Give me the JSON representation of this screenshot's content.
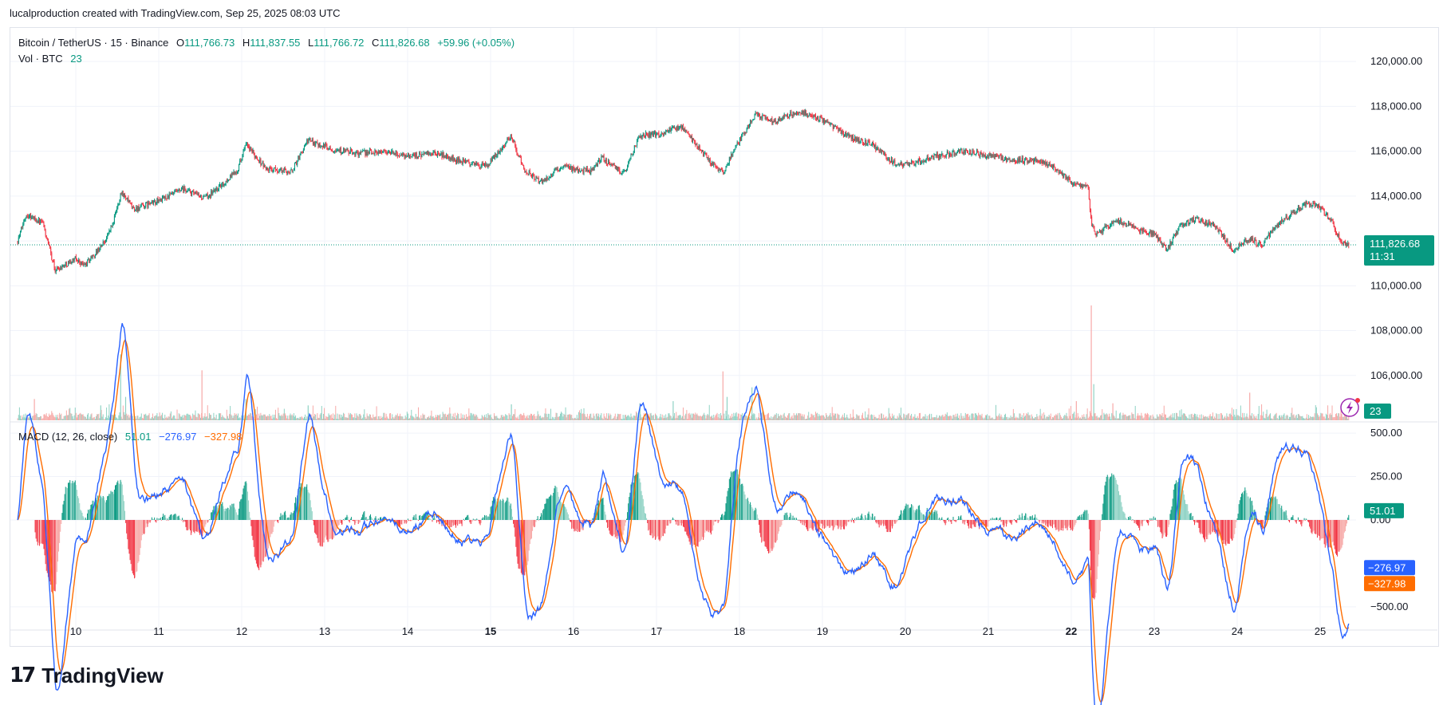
{
  "header": {
    "credit": "lucalproduction created with TradingView.com, Sep 25, 2025 08:03 UTC"
  },
  "legend": {
    "symbol": "Bitcoin / TetherUS · 15 · Binance",
    "o_label": "O",
    "o_value": "111,766.73",
    "h_label": "H",
    "h_value": "111,837.55",
    "l_label": "L",
    "l_value": "111,766.72",
    "c_label": "C",
    "c_value": "111,826.68",
    "change": "+59.96 (+0.05%)",
    "vol_label": "Vol · BTC",
    "vol_value": "23",
    "macd_label": "MACD (12, 26, close)",
    "macd_hist": "51.01",
    "macd_line": "−276.97",
    "macd_signal": "−327.98"
  },
  "price_badge": {
    "price": "111,826.68",
    "countdown": "11:31"
  },
  "vol_badge": "23",
  "macd_badges": {
    "hist": "51.01",
    "line": "−276.97",
    "signal": "−327.98"
  },
  "colors": {
    "up": "#089981",
    "down": "#f23645",
    "macd": "#2962ff",
    "signal": "#ff6d00",
    "up_light": "#8fd2c4",
    "down_light": "#f7a9a7",
    "bolt": "#9c27b0"
  },
  "footer": {
    "brand": "TradingView",
    "logo_icon": "tradingview-logo-icon"
  },
  "chart_data": [
    {
      "type": "candlestick",
      "symbol": "Bitcoin / TetherUS",
      "interval": "15",
      "exchange": "Binance",
      "x_labels": [
        "10",
        "11",
        "12",
        "13",
        "14",
        "15",
        "16",
        "17",
        "18",
        "19",
        "20",
        "21",
        "22",
        "23",
        "24",
        "25"
      ],
      "bold_x_labels": [
        "15",
        "22"
      ],
      "y_ticks": [
        106000,
        108000,
        110000,
        112000,
        114000,
        116000,
        118000,
        120000
      ],
      "y_tick_labels": [
        "106,000.00",
        "108,000.00",
        "110,000.00",
        "112,000.00",
        "114,000.00",
        "116,000.00",
        "118,000.00",
        "120,000.00"
      ],
      "ylim": [
        104000,
        121500
      ],
      "last_price": 111826.68,
      "anchors": [
        {
          "day": 9.3,
          "price": 112000
        },
        {
          "day": 9.4,
          "price": 113200
        },
        {
          "day": 9.6,
          "price": 112800
        },
        {
          "day": 9.75,
          "price": 110700
        },
        {
          "day": 10.0,
          "price": 111200
        },
        {
          "day": 10.1,
          "price": 110900
        },
        {
          "day": 10.25,
          "price": 111500
        },
        {
          "day": 10.35,
          "price": 112000
        },
        {
          "day": 10.45,
          "price": 112800
        },
        {
          "day": 10.55,
          "price": 114200
        },
        {
          "day": 10.7,
          "price": 113400
        },
        {
          "day": 11.0,
          "price": 113800
        },
        {
          "day": 11.3,
          "price": 114300
        },
        {
          "day": 11.55,
          "price": 113900
        },
        {
          "day": 11.8,
          "price": 114600
        },
        {
          "day": 11.95,
          "price": 115200
        },
        {
          "day": 12.05,
          "price": 116300
        },
        {
          "day": 12.3,
          "price": 115200
        },
        {
          "day": 12.6,
          "price": 115100
        },
        {
          "day": 12.8,
          "price": 116500
        },
        {
          "day": 13.1,
          "price": 116100
        },
        {
          "day": 13.4,
          "price": 115900
        },
        {
          "day": 13.7,
          "price": 116000
        },
        {
          "day": 14.0,
          "price": 115800
        },
        {
          "day": 14.35,
          "price": 115900
        },
        {
          "day": 14.6,
          "price": 115600
        },
        {
          "day": 14.95,
          "price": 115300
        },
        {
          "day": 15.25,
          "price": 116700
        },
        {
          "day": 15.4,
          "price": 115200
        },
        {
          "day": 15.6,
          "price": 114600
        },
        {
          "day": 15.85,
          "price": 115300
        },
        {
          "day": 16.2,
          "price": 115100
        },
        {
          "day": 16.35,
          "price": 115700
        },
        {
          "day": 16.6,
          "price": 115000
        },
        {
          "day": 16.8,
          "price": 116700
        },
        {
          "day": 17.05,
          "price": 116800
        },
        {
          "day": 17.3,
          "price": 117100
        },
        {
          "day": 17.5,
          "price": 116200
        },
        {
          "day": 17.65,
          "price": 115500
        },
        {
          "day": 17.8,
          "price": 115000
        },
        {
          "day": 17.9,
          "price": 115800
        },
        {
          "day": 18.05,
          "price": 116800
        },
        {
          "day": 18.2,
          "price": 117700
        },
        {
          "day": 18.4,
          "price": 117300
        },
        {
          "day": 18.7,
          "price": 117800
        },
        {
          "day": 19.0,
          "price": 117400
        },
        {
          "day": 19.3,
          "price": 116700
        },
        {
          "day": 19.6,
          "price": 116300
        },
        {
          "day": 19.85,
          "price": 115500
        },
        {
          "day": 20.0,
          "price": 115400
        },
        {
          "day": 20.4,
          "price": 115800
        },
        {
          "day": 20.7,
          "price": 116000
        },
        {
          "day": 21.0,
          "price": 115800
        },
        {
          "day": 21.3,
          "price": 115600
        },
        {
          "day": 21.6,
          "price": 115600
        },
        {
          "day": 21.8,
          "price": 115300
        },
        {
          "day": 22.0,
          "price": 114600
        },
        {
          "day": 22.2,
          "price": 114400
        },
        {
          "day": 22.24,
          "price": 112800
        },
        {
          "day": 22.3,
          "price": 112300
        },
        {
          "day": 22.55,
          "price": 112900
        },
        {
          "day": 22.8,
          "price": 112500
        },
        {
          "day": 23.0,
          "price": 112300
        },
        {
          "day": 23.15,
          "price": 111600
        },
        {
          "day": 23.3,
          "price": 112600
        },
        {
          "day": 23.5,
          "price": 113000
        },
        {
          "day": 23.75,
          "price": 112600
        },
        {
          "day": 23.95,
          "price": 111600
        },
        {
          "day": 24.15,
          "price": 112100
        },
        {
          "day": 24.3,
          "price": 111800
        },
        {
          "day": 24.45,
          "price": 112600
        },
        {
          "day": 24.65,
          "price": 113200
        },
        {
          "day": 24.85,
          "price": 113700
        },
        {
          "day": 25.0,
          "price": 113500
        },
        {
          "day": 25.15,
          "price": 112800
        },
        {
          "day": 25.25,
          "price": 111900
        },
        {
          "day": 25.35,
          "price": 111826.68
        }
      ],
      "volume_spikes": [
        {
          "day": 9.5,
          "volume": 20,
          "dir": "down"
        },
        {
          "day": 10.3,
          "volume": 14,
          "dir": "up"
        },
        {
          "day": 10.54,
          "volume": 62,
          "dir": "up"
        },
        {
          "day": 10.6,
          "volume": 22,
          "dir": "up"
        },
        {
          "day": 11.52,
          "volume": 47,
          "dir": "down"
        },
        {
          "day": 12.05,
          "volume": 20,
          "dir": "up"
        },
        {
          "day": 12.8,
          "volume": 14,
          "dir": "up"
        },
        {
          "day": 15.25,
          "volume": 15,
          "dir": "up"
        },
        {
          "day": 16.8,
          "volume": 16,
          "dir": "up"
        },
        {
          "day": 17.2,
          "volume": 18,
          "dir": "up"
        },
        {
          "day": 17.8,
          "volume": 46,
          "dir": "down"
        },
        {
          "day": 17.85,
          "volume": 22,
          "dir": "up"
        },
        {
          "day": 18.15,
          "volume": 31,
          "dir": "up"
        },
        {
          "day": 22.06,
          "volume": 18,
          "dir": "down"
        },
        {
          "day": 22.24,
          "volume": 108,
          "dir": "down"
        },
        {
          "day": 22.27,
          "volume": 34,
          "dir": "up"
        },
        {
          "day": 22.5,
          "volume": 16,
          "dir": "down"
        },
        {
          "day": 24.15,
          "volume": 26,
          "dir": "down"
        },
        {
          "day": 25.25,
          "volume": 14,
          "dir": "down"
        }
      ],
      "volume_ylim": [
        0,
        120
      ]
    },
    {
      "type": "macd",
      "title": "MACD (12, 26, close)",
      "params": {
        "fast": 12,
        "slow": 26,
        "source": "close"
      },
      "y_ticks": [
        -500,
        0,
        250,
        500
      ],
      "y_tick_labels": [
        "−500.00",
        "0.00",
        "250.00",
        "500.00"
      ],
      "ylim": [
        -620,
        560
      ],
      "last_values": {
        "histogram": 51.01,
        "macd": -276.97,
        "signal": -327.98
      }
    }
  ]
}
